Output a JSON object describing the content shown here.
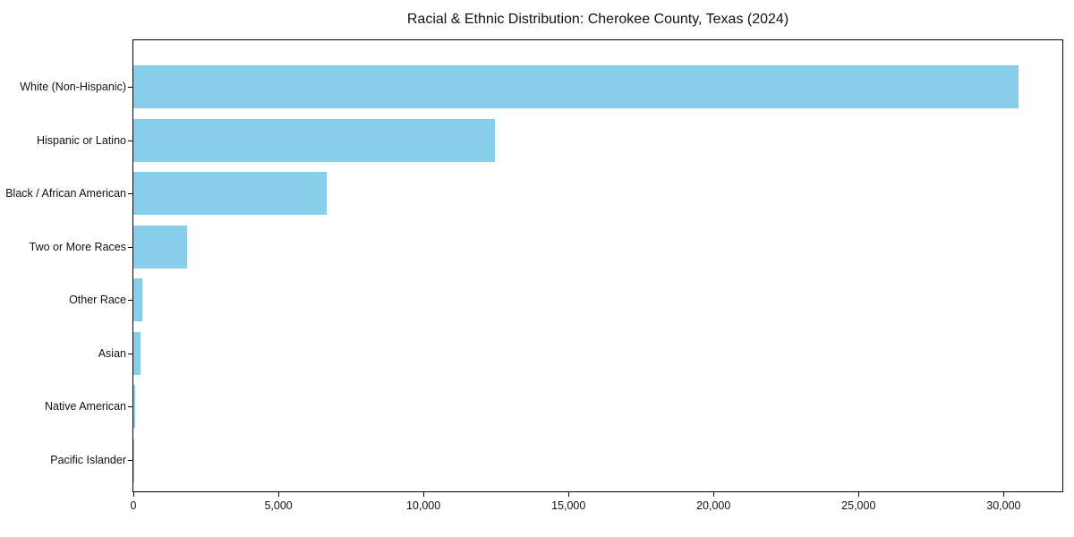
{
  "figure": {
    "background_color": "#ffffff",
    "frame_color": "#000000"
  },
  "chart_data": {
    "type": "bar",
    "orientation": "horizontal",
    "title": "Racial & Ethnic Distribution: Cherokee County, Texas (2024)",
    "xlabel": "",
    "ylabel": "",
    "categories": [
      "White (Non-Hispanic)",
      "Hispanic or Latino",
      "Black / African American",
      "Two or More Races",
      "Other Race",
      "Asian",
      "Native American",
      "Pacific Islander"
    ],
    "values": [
      30500,
      12450,
      6650,
      1850,
      300,
      260,
      50,
      15
    ],
    "xlim": [
      0,
      32025
    ],
    "xticks": [
      0,
      5000,
      10000,
      15000,
      20000,
      25000,
      30000
    ],
    "xtick_labels": [
      "0",
      "5,000",
      "10,000",
      "15,000",
      "20,000",
      "25,000",
      "30,000"
    ],
    "bar_color": "#87CEEB",
    "grid": false,
    "legend": null
  }
}
